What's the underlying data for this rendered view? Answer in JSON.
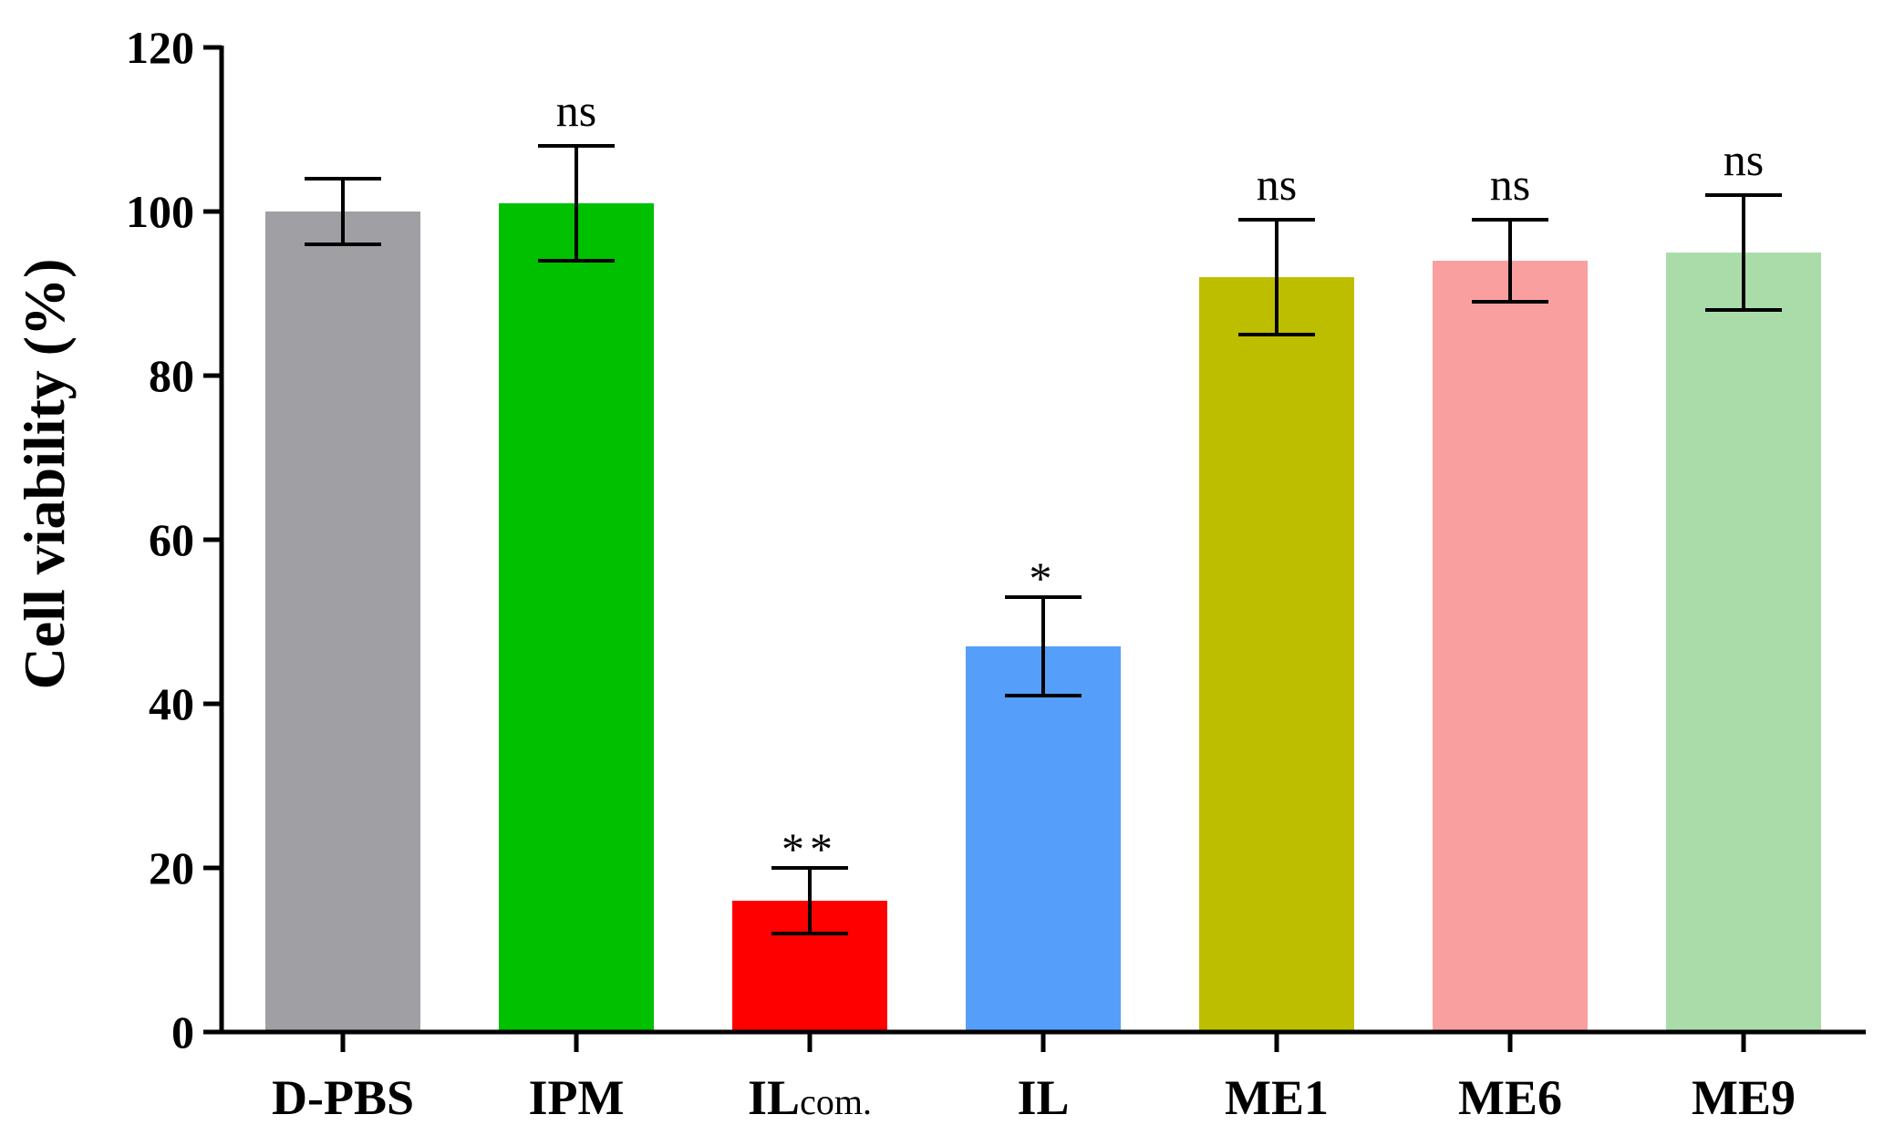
{
  "chart_data": {
    "type": "bar",
    "title": "",
    "xlabel": "",
    "ylabel": "Cell viability (%)",
    "ylim": [
      0,
      120
    ],
    "yticks": [
      0,
      20,
      40,
      60,
      80,
      100,
      120
    ],
    "grid": false,
    "categories": [
      {
        "main": "D-PBS",
        "sub": ""
      },
      {
        "main": "IPM",
        "sub": ""
      },
      {
        "main": "IL",
        "sub": "com."
      },
      {
        "main": "IL",
        "sub": ""
      },
      {
        "main": "ME1",
        "sub": ""
      },
      {
        "main": "ME6",
        "sub": ""
      },
      {
        "main": "ME9",
        "sub": ""
      }
    ],
    "values": [
      100,
      101,
      16,
      47,
      92,
      94,
      95
    ],
    "errors": [
      4,
      7,
      4,
      6,
      7,
      5,
      7
    ],
    "annotations": [
      "",
      "ns",
      "**",
      "*",
      "ns",
      "ns",
      "ns"
    ],
    "colors": [
      "#a09fa4",
      "#00c000",
      "#ff0000",
      "#559ffa",
      "#bebe00",
      "#fa9f9f",
      "#aadcaa"
    ]
  }
}
